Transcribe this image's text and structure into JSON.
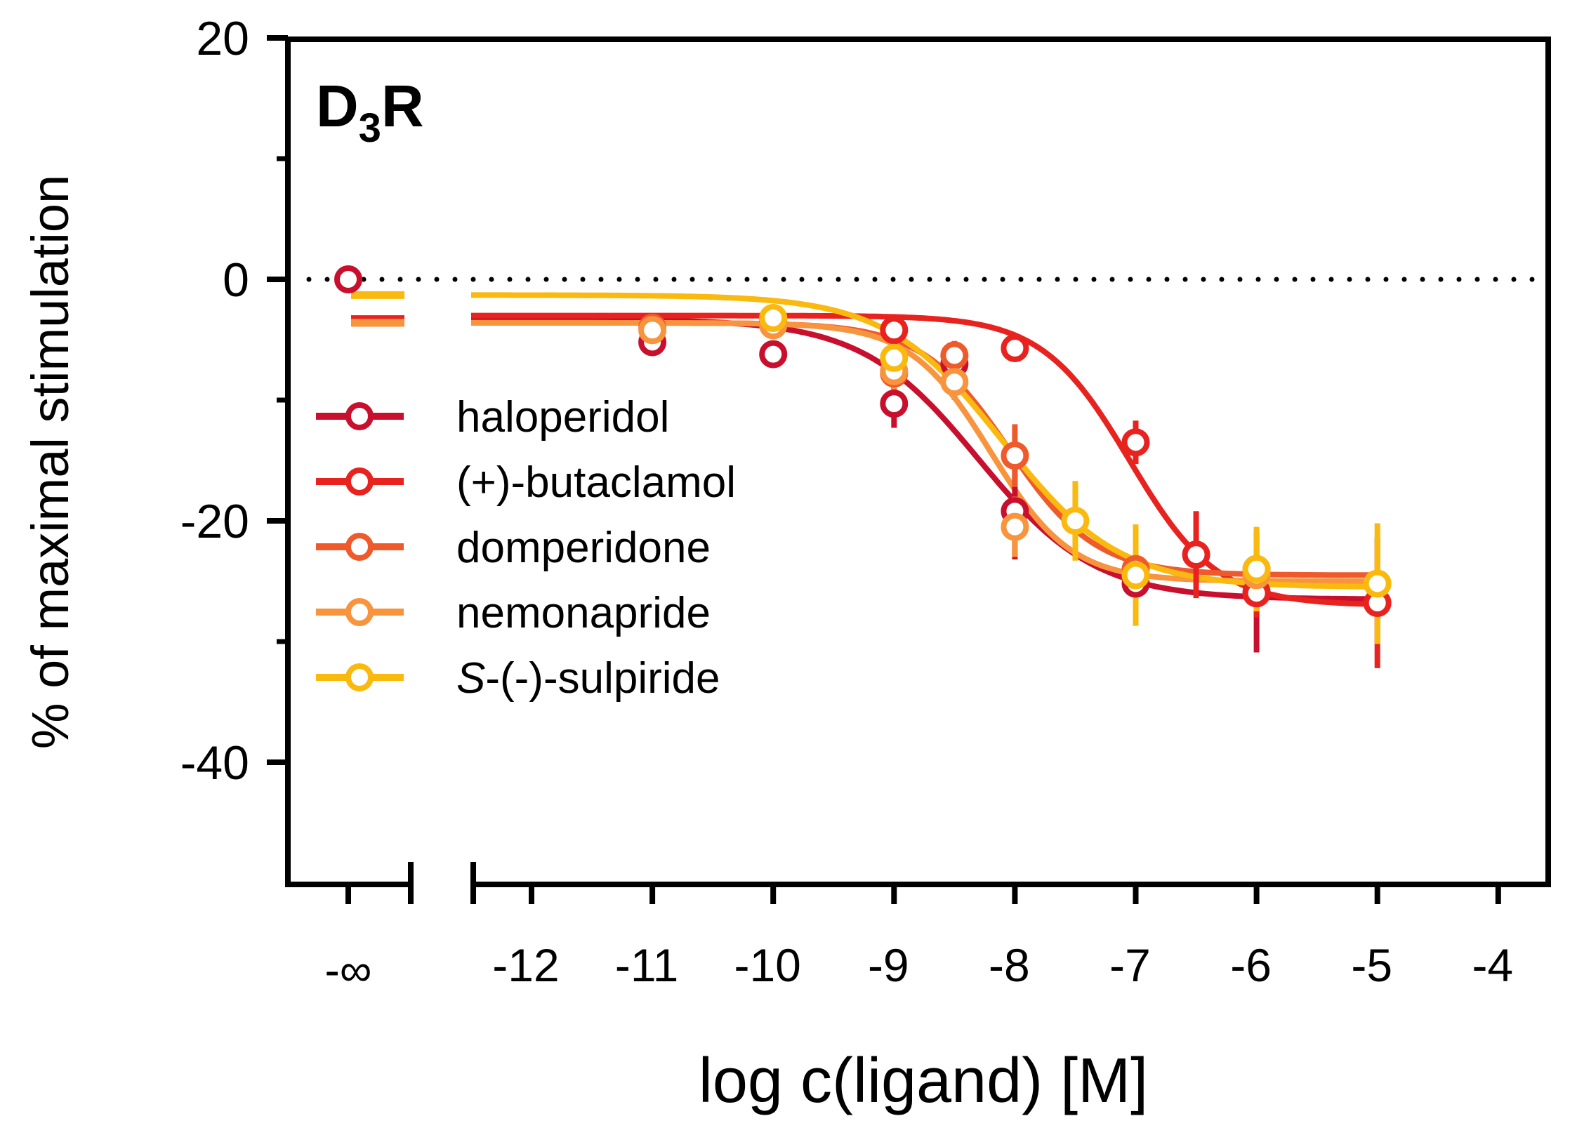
{
  "chart_data": {
    "type": "line",
    "title": "D3R",
    "title_main": "D",
    "title_sub": "3",
    "title_tail": "R",
    "xlabel": "log c(ligand) [M]",
    "ylabel": "% of maximal stimulation",
    "xlim": [
      -12.5,
      -3.6
    ],
    "ylim": [
      -50,
      20
    ],
    "x_ticks": [
      -12,
      -11,
      -10,
      -9,
      -8,
      -7,
      -6,
      -5,
      -4
    ],
    "x_tick_labels": [
      "-12",
      "-11",
      "-10",
      "-9",
      "-8",
      "-7",
      "-6",
      "-5",
      "-4"
    ],
    "y_ticks": [
      20,
      0,
      -20,
      -40
    ],
    "y_tick_labels": [
      "20",
      "0",
      "-20",
      "-40"
    ],
    "neg_inf_label": "-∞",
    "reference_line": 0,
    "legend_position": "left-middle",
    "series": [
      {
        "name": "haloperidol",
        "legend_label": "haloperidol",
        "legend_italic_prefix": "",
        "color": "#c8102e",
        "baseline_value": -3.3,
        "fit": {
          "top": -3.3,
          "bottom": -26.5,
          "log_ic50": -8.3,
          "hill": 0.9
        },
        "points": [
          {
            "x": -11,
            "y": -5.2,
            "err": 1.0
          },
          {
            "x": -10,
            "y": -6.2,
            "err": 1.0
          },
          {
            "x": -9,
            "y": -10.3,
            "err": 2.0
          },
          {
            "x": -8.5,
            "y": -7.0,
            "err": 1.2
          },
          {
            "x": -8,
            "y": -19.2,
            "err": 4.0
          },
          {
            "x": -7,
            "y": -25.2,
            "err": 3.0
          },
          {
            "x": -6,
            "y": -25.9,
            "err": 5.0
          }
        ]
      },
      {
        "name": "(+)-butaclamol",
        "legend_label": "(+)-butaclamol",
        "legend_italic_prefix": "",
        "color": "#e8231f",
        "baseline_value": -3.3,
        "fit": {
          "top": -3.0,
          "bottom": -27.0,
          "log_ic50": -7.05,
          "hill": 1.2
        },
        "points": [
          {
            "x": -10,
            "y": -3.3,
            "err": 1.0
          },
          {
            "x": -9,
            "y": -4.2,
            "err": 1.0
          },
          {
            "x": -8,
            "y": -5.7,
            "err": 1.0
          },
          {
            "x": -7,
            "y": -13.5,
            "err": 1.8
          },
          {
            "x": -6.5,
            "y": -22.8,
            "err": 3.6
          },
          {
            "x": -6,
            "y": -26.0,
            "err": 2.0
          },
          {
            "x": -5,
            "y": -26.8,
            "err": 5.4
          }
        ]
      },
      {
        "name": "domperidone",
        "legend_label": "domperidone",
        "legend_italic_prefix": "",
        "color": "#ef5a2d",
        "baseline_value": -3.6,
        "fit": {
          "top": -3.6,
          "bottom": -24.5,
          "log_ic50": -8.05,
          "hill": 1.2
        },
        "points": [
          {
            "x": -11,
            "y": -4.0,
            "err": 1.0
          },
          {
            "x": -10,
            "y": -3.5,
            "err": 1.0
          },
          {
            "x": -9,
            "y": -7.8,
            "err": 1.5
          },
          {
            "x": -8.5,
            "y": -6.3,
            "err": 1.2
          },
          {
            "x": -8,
            "y": -14.6,
            "err": 2.6
          },
          {
            "x": -7,
            "y": -24.0,
            "err": 2.0
          },
          {
            "x": -6,
            "y": -24.0,
            "err": 3.0
          }
        ]
      },
      {
        "name": "nemonapride",
        "legend_label": "nemonapride",
        "legend_italic_prefix": "",
        "color": "#f7943d",
        "baseline_value": -3.6,
        "fit": {
          "top": -3.6,
          "bottom": -25.0,
          "log_ic50": -8.2,
          "hill": 1.3
        },
        "points": [
          {
            "x": -11,
            "y": -4.2,
            "err": 1.0
          },
          {
            "x": -10,
            "y": -3.8,
            "err": 1.0
          },
          {
            "x": -9,
            "y": -7.6,
            "err": 1.5
          },
          {
            "x": -8.5,
            "y": -8.5,
            "err": 1.5
          },
          {
            "x": -8,
            "y": -20.5,
            "err": 2.5
          },
          {
            "x": -7,
            "y": -24.5,
            "err": 2.0
          },
          {
            "x": -6,
            "y": -24.5,
            "err": 2.0
          }
        ]
      },
      {
        "name": "S-(-)-sulpiride",
        "legend_label": "-(-)-sulpiride",
        "legend_italic_prefix": "S",
        "color": "#f9b90f",
        "baseline_value": -1.3,
        "fit": {
          "top": -1.3,
          "bottom": -25.5,
          "log_ic50": -8.1,
          "hill": 0.9
        },
        "points": [
          {
            "x": -10,
            "y": -3.2,
            "err": 1.0
          },
          {
            "x": -9,
            "y": -6.5,
            "err": 1.5
          },
          {
            "x": -7.5,
            "y": -20.0,
            "err": 3.3
          },
          {
            "x": -7,
            "y": -24.5,
            "err": 4.2
          },
          {
            "x": -6,
            "y": -24.0,
            "err": 3.5
          },
          {
            "x": -5,
            "y": -25.2,
            "err": 5.0
          }
        ]
      }
    ]
  }
}
